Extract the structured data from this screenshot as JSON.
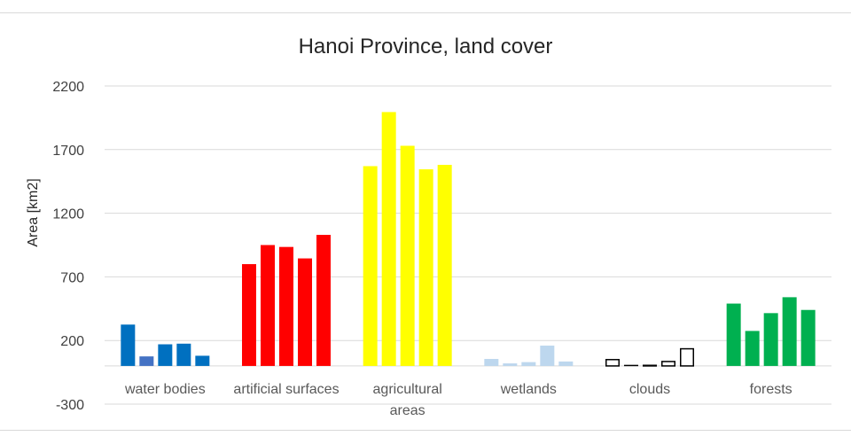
{
  "chart_data": {
    "type": "bar",
    "title": "Hanoi Province, land cover",
    "ylabel": "Area [km2]",
    "xlabel": "",
    "ylim": [
      -300,
      2200
    ],
    "yticks": [
      "2200",
      "1700",
      "1200",
      "700",
      "200",
      "-300"
    ],
    "grid": true,
    "categories": [
      {
        "label": [
          "water bodies"
        ],
        "values": [
          325,
          75,
          170,
          175,
          80
        ],
        "colors": [
          "#0070c0",
          "#4472c4",
          "#0070c0",
          "#0070c0",
          "#0070c0"
        ],
        "style": "filled"
      },
      {
        "label": [
          "artificial surfaces"
        ],
        "values": [
          800,
          950,
          935,
          845,
          1030
        ],
        "colors": [
          "#ff0000",
          "#ff0000",
          "#ff0000",
          "#ff0000",
          "#ff0000"
        ],
        "style": "filled"
      },
      {
        "label": [
          "agricultural",
          "areas"
        ],
        "values": [
          1570,
          1995,
          1730,
          1545,
          1580
        ],
        "colors": [
          "#ffff00",
          "#ffff00",
          "#ffff00",
          "#ffff00",
          "#ffff00"
        ],
        "style": "filled"
      },
      {
        "label": [
          "wetlands"
        ],
        "values": [
          55,
          20,
          30,
          160,
          35
        ],
        "colors": [
          "#bdd7ee",
          "#bdd7ee",
          "#bdd7ee",
          "#bdd7ee",
          "#bdd7ee"
        ],
        "style": "filled"
      },
      {
        "label": [
          "clouds"
        ],
        "values": [
          55,
          0,
          10,
          40,
          140
        ],
        "colors": [
          "#000000",
          "#000000",
          "#000000",
          "#000000",
          "#000000"
        ],
        "style": "outline"
      },
      {
        "label": [
          "forests"
        ],
        "values": [
          490,
          275,
          415,
          540,
          440
        ],
        "colors": [
          "#00b050",
          "#00b050",
          "#00b050",
          "#00b050",
          "#00b050"
        ],
        "style": "filled"
      }
    ]
  }
}
